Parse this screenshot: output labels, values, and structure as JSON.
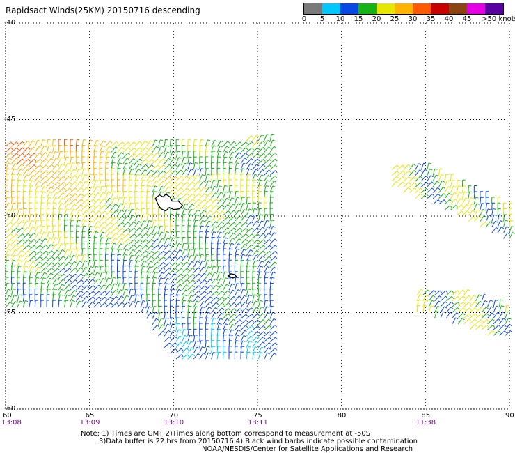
{
  "title": "Rapidsact Winds(25KM) 20150716 descending",
  "legend": {
    "labels": [
      "0",
      "5",
      "10",
      "15",
      "20",
      "25",
      "30",
      "35",
      "40",
      "45",
      ">50 knots"
    ],
    "colors": [
      "#7a7a7a",
      "#00c8ff",
      "#0a48e6",
      "#14b414",
      "#e6e600",
      "#ffb400",
      "#ff5a00",
      "#c80000",
      "#8b4513",
      "#e600e6",
      "#5a00a0"
    ]
  },
  "axes": {
    "lat_labels": [
      "-40",
      "-45",
      "-50",
      "-55",
      "-60"
    ],
    "lon_labels": [
      "60",
      "65",
      "70",
      "75",
      "80",
      "85",
      "90"
    ],
    "time_labels": [
      {
        "lon": "60",
        "text": "13:08"
      },
      {
        "lon": "65",
        "text": "13:09"
      },
      {
        "lon": "70",
        "text": "13:10"
      },
      {
        "lon": "75",
        "text": "13:11"
      },
      {
        "lon": "85",
        "text": "11:38"
      }
    ]
  },
  "notes": {
    "line1": "Note: 1) Times are GMT 2)Times along bottom correspond to measurement at -50S",
    "line2": "3)Data buffer is 22 hrs from 20150716 4) Black wind barbs indicate possible contamination",
    "line3": "NOAA/NESDIS/Center for Satellite Applications and Research"
  },
  "map": {
    "lon_range": [
      60,
      90
    ],
    "lat_range": [
      -60,
      -40
    ],
    "swaths": [
      {
        "name": "main-swath",
        "lon_range": [
          60,
          75.8
        ],
        "lat_range": [
          -57.5,
          -46.1
        ]
      },
      {
        "name": "east-swath-north",
        "lon_range": [
          83,
          90
        ],
        "lat_range": [
          -51.8,
          -47.6
        ]
      },
      {
        "name": "east-swath-south",
        "lon_range": [
          84.5,
          90
        ],
        "lat_range": [
          -56.4,
          -54.1
        ]
      }
    ],
    "islands": [
      {
        "name": "kerguelen-islands",
        "lon": 69.5,
        "lat": -49.3
      },
      {
        "name": "heard-island",
        "lon": 73.5,
        "lat": -53.1
      }
    ]
  }
}
